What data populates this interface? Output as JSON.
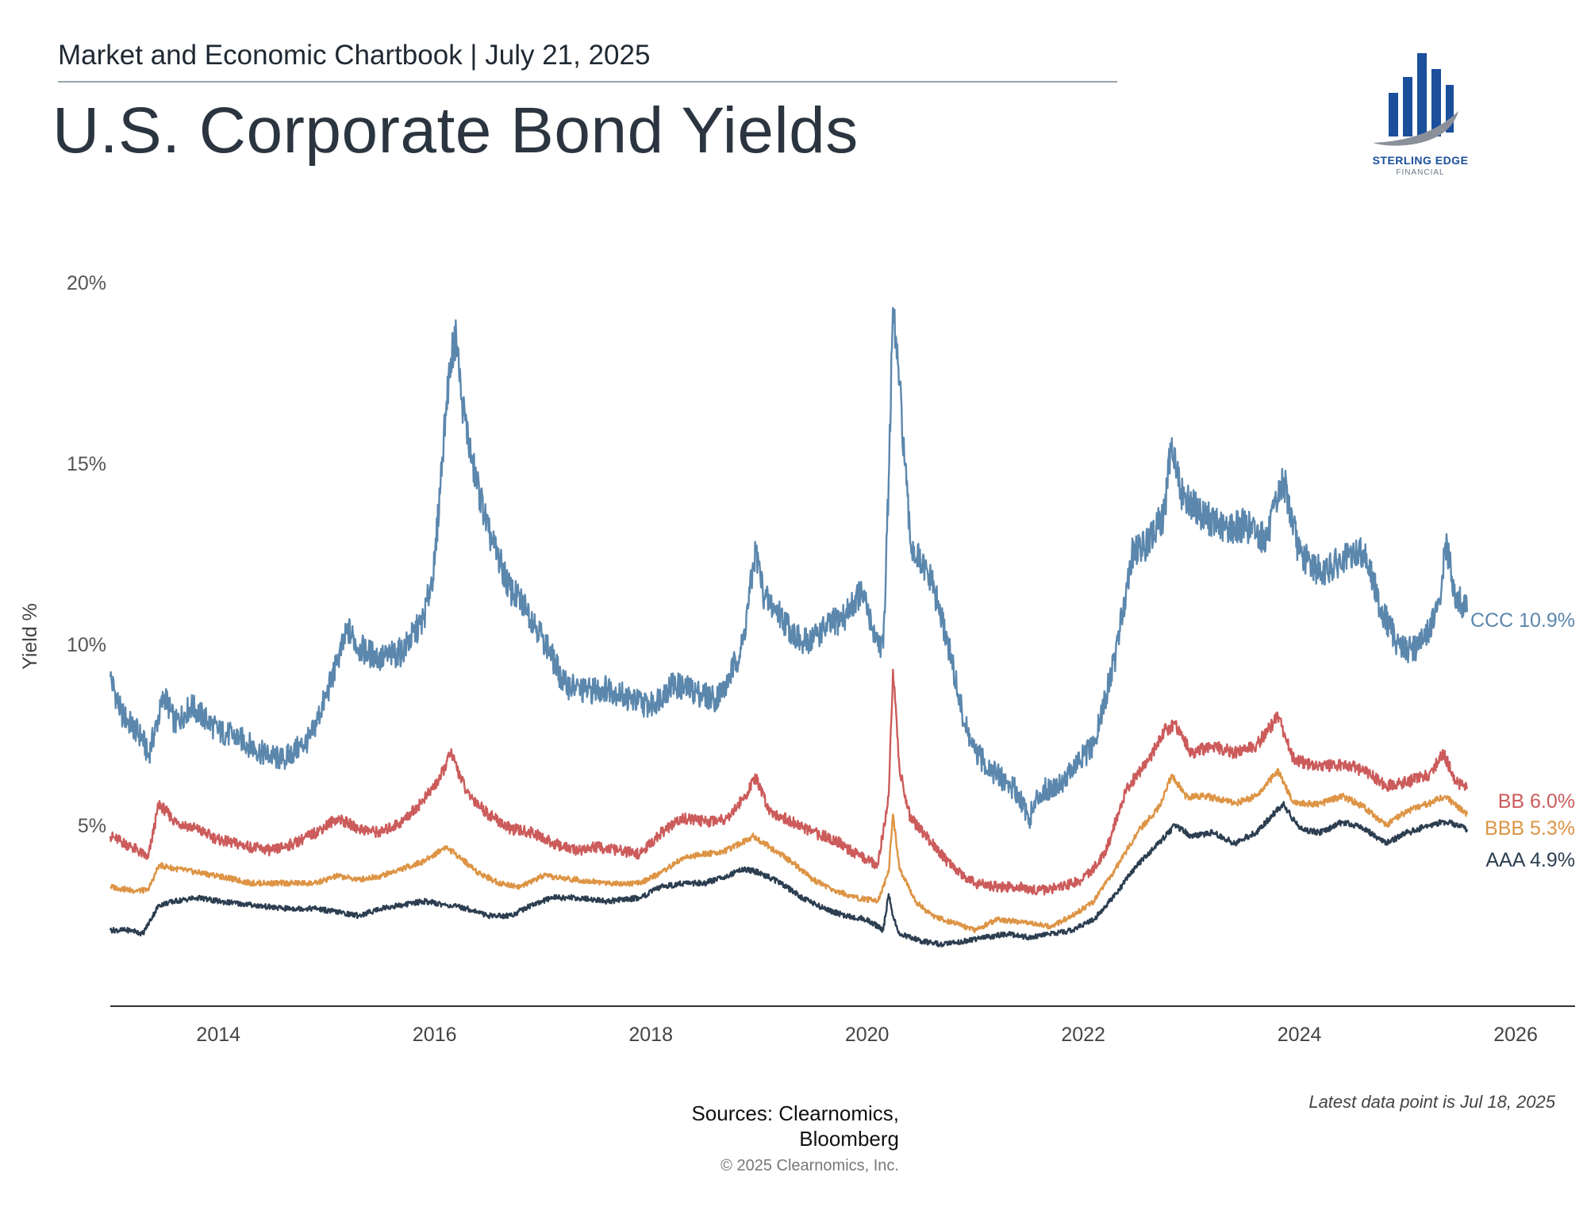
{
  "header": {
    "chartbook": "Market and Economic Chartbook | July 21, 2025",
    "title": "U.S. Corporate Bond Yields"
  },
  "logo": {
    "name": "STERLING EDGE",
    "sub": "FINANCIAL",
    "colors": {
      "bars": "#1b4f9c",
      "swoosh": "#8a9099"
    }
  },
  "footer": {
    "sources": [
      "Sources: Clearnomics,",
      "Bloomberg"
    ],
    "copyright": "© 2025 Clearnomics, Inc.",
    "latest": "Latest data point is Jul 18, 2025"
  },
  "chart_data": {
    "type": "line",
    "title": "U.S. Corporate Bond Yields",
    "xlabel": "",
    "ylabel": "Yield %",
    "xlim": [
      2013.0,
      2026.55
    ],
    "ylim": [
      0,
      20
    ],
    "yticks": [
      {
        "v": 5,
        "label": "5%"
      },
      {
        "v": 10,
        "label": "10%"
      },
      {
        "v": 15,
        "label": "15%"
      },
      {
        "v": 20,
        "label": "20%"
      }
    ],
    "xticks": [
      {
        "v": 2014,
        "label": "2014"
      },
      {
        "v": 2016,
        "label": "2016"
      },
      {
        "v": 2018,
        "label": "2018"
      },
      {
        "v": 2020,
        "label": "2020"
      },
      {
        "v": 2022,
        "label": "2022"
      },
      {
        "v": 2024,
        "label": "2024"
      },
      {
        "v": 2026,
        "label": "2026"
      }
    ],
    "grid": false,
    "series": [
      {
        "name": "CCC",
        "end_label": "CCC 10.9%",
        "color": "#5b87ad",
        "points": [
          [
            2013.0,
            9.1
          ],
          [
            2013.1,
            8.1
          ],
          [
            2013.3,
            7.4
          ],
          [
            2013.35,
            6.9
          ],
          [
            2013.5,
            8.6
          ],
          [
            2013.6,
            7.8
          ],
          [
            2013.75,
            8.3
          ],
          [
            2014.0,
            7.6
          ],
          [
            2014.2,
            7.4
          ],
          [
            2014.4,
            7.0
          ],
          [
            2014.6,
            6.8
          ],
          [
            2014.85,
            7.4
          ],
          [
            2015.0,
            8.6
          ],
          [
            2015.1,
            9.5
          ],
          [
            2015.2,
            10.4
          ],
          [
            2015.3,
            9.9
          ],
          [
            2015.5,
            9.6
          ],
          [
            2015.7,
            9.8
          ],
          [
            2015.9,
            10.7
          ],
          [
            2016.0,
            12.2
          ],
          [
            2016.1,
            16.4
          ],
          [
            2016.15,
            17.9
          ],
          [
            2016.2,
            18.5
          ],
          [
            2016.25,
            16.8
          ],
          [
            2016.35,
            15.0
          ],
          [
            2016.5,
            13.1
          ],
          [
            2016.7,
            11.5
          ],
          [
            2016.85,
            11.0
          ],
          [
            2017.0,
            10.2
          ],
          [
            2017.2,
            8.9
          ],
          [
            2017.4,
            8.7
          ],
          [
            2017.6,
            8.8
          ],
          [
            2017.8,
            8.5
          ],
          [
            2018.0,
            8.3
          ],
          [
            2018.2,
            8.9
          ],
          [
            2018.4,
            8.7
          ],
          [
            2018.6,
            8.5
          ],
          [
            2018.7,
            8.9
          ],
          [
            2018.85,
            10.0
          ],
          [
            2018.97,
            12.6
          ],
          [
            2019.05,
            11.3
          ],
          [
            2019.2,
            10.8
          ],
          [
            2019.4,
            10.0
          ],
          [
            2019.6,
            10.4
          ],
          [
            2019.8,
            10.8
          ],
          [
            2019.95,
            11.5
          ],
          [
            2020.05,
            10.4
          ],
          [
            2020.15,
            9.9
          ],
          [
            2020.2,
            14.5
          ],
          [
            2020.24,
            19.3
          ],
          [
            2020.3,
            17.2
          ],
          [
            2020.4,
            12.8
          ],
          [
            2020.5,
            12.2
          ],
          [
            2020.6,
            11.7
          ],
          [
            2020.75,
            10.0
          ],
          [
            2020.9,
            7.8
          ],
          [
            2021.0,
            7.0
          ],
          [
            2021.2,
            6.4
          ],
          [
            2021.4,
            5.9
          ],
          [
            2021.5,
            5.2
          ],
          [
            2021.6,
            5.9
          ],
          [
            2021.8,
            6.2
          ],
          [
            2022.0,
            6.9
          ],
          [
            2022.1,
            7.2
          ],
          [
            2022.3,
            9.7
          ],
          [
            2022.45,
            12.5
          ],
          [
            2022.6,
            12.8
          ],
          [
            2022.75,
            13.6
          ],
          [
            2022.82,
            15.7
          ],
          [
            2022.9,
            14.2
          ],
          [
            2023.1,
            13.6
          ],
          [
            2023.3,
            13.2
          ],
          [
            2023.5,
            13.3
          ],
          [
            2023.7,
            12.9
          ],
          [
            2023.85,
            14.6
          ],
          [
            2024.0,
            12.5
          ],
          [
            2024.2,
            12.0
          ],
          [
            2024.4,
            12.3
          ],
          [
            2024.6,
            12.6
          ],
          [
            2024.75,
            11.0
          ],
          [
            2024.9,
            10.1
          ],
          [
            2025.0,
            9.8
          ],
          [
            2025.15,
            10.1
          ],
          [
            2025.3,
            11.1
          ],
          [
            2025.35,
            12.8
          ],
          [
            2025.45,
            11.3
          ],
          [
            2025.55,
            10.9
          ]
        ]
      },
      {
        "name": "BB",
        "end_label": "BB 6.0%",
        "color": "#cc5b5b",
        "points": [
          [
            2013.0,
            4.7
          ],
          [
            2013.2,
            4.4
          ],
          [
            2013.35,
            4.1
          ],
          [
            2013.45,
            5.6
          ],
          [
            2013.6,
            5.1
          ],
          [
            2013.8,
            4.9
          ],
          [
            2014.0,
            4.6
          ],
          [
            2014.3,
            4.4
          ],
          [
            2014.5,
            4.3
          ],
          [
            2014.7,
            4.5
          ],
          [
            2014.9,
            4.8
          ],
          [
            2015.1,
            5.2
          ],
          [
            2015.3,
            4.9
          ],
          [
            2015.5,
            4.8
          ],
          [
            2015.7,
            5.1
          ],
          [
            2015.9,
            5.7
          ],
          [
            2016.05,
            6.3
          ],
          [
            2016.15,
            7.0
          ],
          [
            2016.3,
            5.9
          ],
          [
            2016.5,
            5.3
          ],
          [
            2016.7,
            4.9
          ],
          [
            2016.9,
            4.8
          ],
          [
            2017.1,
            4.5
          ],
          [
            2017.3,
            4.3
          ],
          [
            2017.5,
            4.4
          ],
          [
            2017.7,
            4.3
          ],
          [
            2017.9,
            4.2
          ],
          [
            2018.1,
            4.8
          ],
          [
            2018.3,
            5.2
          ],
          [
            2018.5,
            5.1
          ],
          [
            2018.7,
            5.2
          ],
          [
            2018.85,
            5.7
          ],
          [
            2018.97,
            6.3
          ],
          [
            2019.1,
            5.4
          ],
          [
            2019.3,
            5.1
          ],
          [
            2019.5,
            4.8
          ],
          [
            2019.7,
            4.6
          ],
          [
            2019.9,
            4.2
          ],
          [
            2020.1,
            3.9
          ],
          [
            2020.2,
            5.8
          ],
          [
            2020.24,
            9.3
          ],
          [
            2020.3,
            6.6
          ],
          [
            2020.4,
            5.2
          ],
          [
            2020.6,
            4.5
          ],
          [
            2020.8,
            3.8
          ],
          [
            2021.0,
            3.4
          ],
          [
            2021.2,
            3.3
          ],
          [
            2021.4,
            3.3
          ],
          [
            2021.6,
            3.2
          ],
          [
            2021.8,
            3.3
          ],
          [
            2022.0,
            3.5
          ],
          [
            2022.2,
            4.2
          ],
          [
            2022.4,
            6.0
          ],
          [
            2022.6,
            6.8
          ],
          [
            2022.75,
            7.6
          ],
          [
            2022.85,
            7.8
          ],
          [
            2023.0,
            7.0
          ],
          [
            2023.2,
            7.2
          ],
          [
            2023.4,
            7.0
          ],
          [
            2023.6,
            7.2
          ],
          [
            2023.8,
            8.0
          ],
          [
            2023.95,
            6.8
          ],
          [
            2024.2,
            6.6
          ],
          [
            2024.4,
            6.7
          ],
          [
            2024.6,
            6.5
          ],
          [
            2024.8,
            6.1
          ],
          [
            2025.0,
            6.2
          ],
          [
            2025.2,
            6.4
          ],
          [
            2025.33,
            7.0
          ],
          [
            2025.45,
            6.2
          ],
          [
            2025.55,
            6.0
          ]
        ]
      },
      {
        "name": "BBB",
        "end_label": "BBB 5.3%",
        "color": "#dd9445",
        "points": [
          [
            2013.0,
            3.3
          ],
          [
            2013.2,
            3.2
          ],
          [
            2013.35,
            3.2
          ],
          [
            2013.45,
            3.9
          ],
          [
            2013.6,
            3.8
          ],
          [
            2013.8,
            3.7
          ],
          [
            2014.0,
            3.6
          ],
          [
            2014.3,
            3.4
          ],
          [
            2014.6,
            3.4
          ],
          [
            2014.9,
            3.4
          ],
          [
            2015.1,
            3.6
          ],
          [
            2015.3,
            3.5
          ],
          [
            2015.5,
            3.6
          ],
          [
            2015.7,
            3.8
          ],
          [
            2015.9,
            4.0
          ],
          [
            2016.1,
            4.4
          ],
          [
            2016.2,
            4.2
          ],
          [
            2016.4,
            3.7
          ],
          [
            2016.6,
            3.4
          ],
          [
            2016.8,
            3.3
          ],
          [
            2017.0,
            3.6
          ],
          [
            2017.3,
            3.5
          ],
          [
            2017.6,
            3.4
          ],
          [
            2017.9,
            3.4
          ],
          [
            2018.1,
            3.7
          ],
          [
            2018.3,
            4.1
          ],
          [
            2018.5,
            4.2
          ],
          [
            2018.7,
            4.3
          ],
          [
            2018.95,
            4.7
          ],
          [
            2019.1,
            4.4
          ],
          [
            2019.3,
            4.0
          ],
          [
            2019.5,
            3.5
          ],
          [
            2019.7,
            3.2
          ],
          [
            2019.9,
            3.0
          ],
          [
            2020.1,
            2.9
          ],
          [
            2020.2,
            3.7
          ],
          [
            2020.24,
            5.3
          ],
          [
            2020.3,
            3.8
          ],
          [
            2020.45,
            2.9
          ],
          [
            2020.6,
            2.5
          ],
          [
            2020.8,
            2.3
          ],
          [
            2021.0,
            2.1
          ],
          [
            2021.2,
            2.4
          ],
          [
            2021.5,
            2.3
          ],
          [
            2021.7,
            2.2
          ],
          [
            2021.9,
            2.5
          ],
          [
            2022.1,
            2.9
          ],
          [
            2022.3,
            3.8
          ],
          [
            2022.5,
            4.8
          ],
          [
            2022.7,
            5.5
          ],
          [
            2022.82,
            6.4
          ],
          [
            2022.95,
            5.8
          ],
          [
            2023.15,
            5.8
          ],
          [
            2023.4,
            5.6
          ],
          [
            2023.6,
            5.8
          ],
          [
            2023.8,
            6.5
          ],
          [
            2023.95,
            5.6
          ],
          [
            2024.2,
            5.6
          ],
          [
            2024.4,
            5.8
          ],
          [
            2024.6,
            5.5
          ],
          [
            2024.8,
            5.0
          ],
          [
            2025.0,
            5.4
          ],
          [
            2025.2,
            5.6
          ],
          [
            2025.35,
            5.8
          ],
          [
            2025.55,
            5.3
          ]
        ]
      },
      {
        "name": "AAA",
        "end_label": "AAA 4.9%",
        "color": "#2c3e50",
        "points": [
          [
            2013.0,
            2.1
          ],
          [
            2013.2,
            2.1
          ],
          [
            2013.3,
            2.0
          ],
          [
            2013.45,
            2.8
          ],
          [
            2013.6,
            2.9
          ],
          [
            2013.8,
            3.0
          ],
          [
            2014.0,
            2.9
          ],
          [
            2014.3,
            2.8
          ],
          [
            2014.6,
            2.7
          ],
          [
            2014.9,
            2.7
          ],
          [
            2015.1,
            2.6
          ],
          [
            2015.3,
            2.5
          ],
          [
            2015.5,
            2.7
          ],
          [
            2015.7,
            2.8
          ],
          [
            2015.9,
            2.9
          ],
          [
            2016.1,
            2.8
          ],
          [
            2016.3,
            2.7
          ],
          [
            2016.5,
            2.5
          ],
          [
            2016.7,
            2.5
          ],
          [
            2016.9,
            2.8
          ],
          [
            2017.1,
            3.0
          ],
          [
            2017.3,
            3.0
          ],
          [
            2017.6,
            2.9
          ],
          [
            2017.9,
            3.0
          ],
          [
            2018.1,
            3.3
          ],
          [
            2018.3,
            3.4
          ],
          [
            2018.5,
            3.4
          ],
          [
            2018.7,
            3.6
          ],
          [
            2018.85,
            3.8
          ],
          [
            2019.0,
            3.7
          ],
          [
            2019.2,
            3.4
          ],
          [
            2019.4,
            3.0
          ],
          [
            2019.6,
            2.7
          ],
          [
            2019.8,
            2.5
          ],
          [
            2020.0,
            2.4
          ],
          [
            2020.15,
            2.1
          ],
          [
            2020.2,
            3.1
          ],
          [
            2020.24,
            2.5
          ],
          [
            2020.3,
            2.0
          ],
          [
            2020.5,
            1.8
          ],
          [
            2020.7,
            1.7
          ],
          [
            2020.9,
            1.8
          ],
          [
            2021.1,
            1.9
          ],
          [
            2021.3,
            2.0
          ],
          [
            2021.5,
            1.9
          ],
          [
            2021.7,
            2.0
          ],
          [
            2021.9,
            2.1
          ],
          [
            2022.1,
            2.4
          ],
          [
            2022.3,
            3.1
          ],
          [
            2022.5,
            3.9
          ],
          [
            2022.7,
            4.5
          ],
          [
            2022.85,
            5.0
          ],
          [
            2023.0,
            4.7
          ],
          [
            2023.2,
            4.8
          ],
          [
            2023.4,
            4.5
          ],
          [
            2023.6,
            4.8
          ],
          [
            2023.85,
            5.6
          ],
          [
            2024.0,
            4.9
          ],
          [
            2024.2,
            4.8
          ],
          [
            2024.4,
            5.1
          ],
          [
            2024.6,
            4.9
          ],
          [
            2024.8,
            4.5
          ],
          [
            2025.0,
            4.8
          ],
          [
            2025.2,
            5.0
          ],
          [
            2025.35,
            5.1
          ],
          [
            2025.55,
            4.9
          ]
        ]
      }
    ]
  }
}
